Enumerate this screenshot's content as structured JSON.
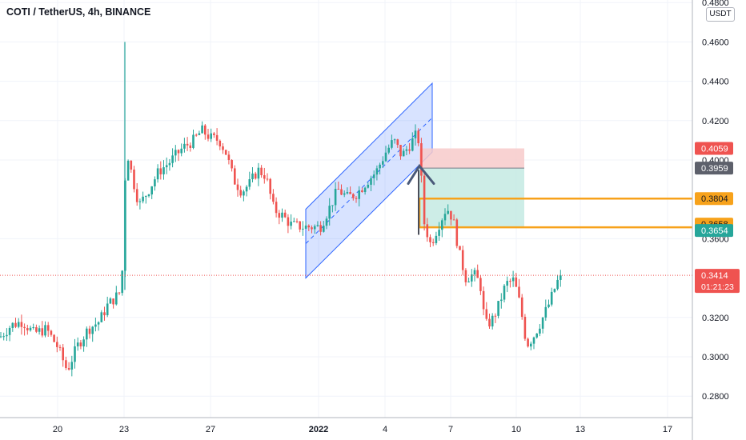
{
  "header": {
    "title": "COTI / TetherUS, 4h, BINANCE",
    "currency": "USDT"
  },
  "colors": {
    "up": "#26a69a",
    "down": "#ef5350",
    "channel": "#2962ff",
    "level": "#f7a21b",
    "stop_zone": "#f7caca",
    "target_zone": "#c8ebe4",
    "grid": "#f0f3fa",
    "axis_text": "#131722"
  },
  "chart_data": {
    "type": "candlestick",
    "symbol": "COTI / TetherUS",
    "interval": "4h",
    "exchange": "BINANCE",
    "ylim": [
      0.27,
      0.48
    ],
    "y_ticks": [
      "0.2800",
      "0.3000",
      "0.3200",
      "0.3600",
      "0.4000",
      "0.4200",
      "0.4400",
      "0.4600",
      "0.4800"
    ],
    "x_ticks": [
      {
        "label": "20",
        "bold": false
      },
      {
        "label": "23",
        "bold": false
      },
      {
        "label": "27",
        "bold": false
      },
      {
        "label": "2022",
        "bold": true
      },
      {
        "label": "4",
        "bold": false
      },
      {
        "label": "7",
        "bold": false
      },
      {
        "label": "10",
        "bold": false
      },
      {
        "label": "13",
        "bold": false
      },
      {
        "label": "17",
        "bold": false
      }
    ],
    "price_path": [
      [
        0,
        0.31
      ],
      [
        14,
        0.316
      ],
      [
        28,
        0.318
      ],
      [
        42,
        0.312
      ],
      [
        58,
        0.314
      ],
      [
        72,
        0.305
      ],
      [
        84,
        0.293
      ],
      [
        96,
        0.305
      ],
      [
        110,
        0.314
      ],
      [
        124,
        0.318
      ],
      [
        134,
        0.326
      ],
      [
        146,
        0.331
      ],
      [
        152,
        0.334
      ],
      [
        156,
        0.39
      ],
      [
        160,
        0.402
      ],
      [
        166,
        0.39
      ],
      [
        174,
        0.377
      ],
      [
        186,
        0.385
      ],
      [
        198,
        0.394
      ],
      [
        212,
        0.399
      ],
      [
        228,
        0.406
      ],
      [
        242,
        0.41
      ],
      [
        252,
        0.415
      ],
      [
        264,
        0.411
      ],
      [
        274,
        0.41
      ],
      [
        282,
        0.404
      ],
      [
        292,
        0.39
      ],
      [
        302,
        0.384
      ],
      [
        312,
        0.388
      ],
      [
        322,
        0.395
      ],
      [
        332,
        0.392
      ],
      [
        342,
        0.375
      ],
      [
        352,
        0.372
      ],
      [
        364,
        0.367
      ],
      [
        378,
        0.366
      ],
      [
        390,
        0.366
      ],
      [
        400,
        0.366
      ],
      [
        412,
        0.376
      ],
      [
        422,
        0.385
      ],
      [
        434,
        0.381
      ],
      [
        446,
        0.383
      ],
      [
        458,
        0.389
      ],
      [
        470,
        0.394
      ],
      [
        482,
        0.404
      ],
      [
        492,
        0.41
      ],
      [
        502,
        0.402
      ],
      [
        514,
        0.409
      ],
      [
        522,
        0.414
      ],
      [
        526,
        0.392
      ],
      [
        530,
        0.368
      ],
      [
        538,
        0.357
      ],
      [
        548,
        0.367
      ],
      [
        558,
        0.376
      ],
      [
        566,
        0.37
      ],
      [
        574,
        0.352
      ],
      [
        582,
        0.34
      ],
      [
        592,
        0.342
      ],
      [
        600,
        0.337
      ],
      [
        606,
        0.316
      ],
      [
        614,
        0.318
      ],
      [
        622,
        0.325
      ],
      [
        632,
        0.337
      ],
      [
        642,
        0.339
      ],
      [
        650,
        0.326
      ],
      [
        658,
        0.306
      ],
      [
        666,
        0.31
      ],
      [
        676,
        0.318
      ],
      [
        686,
        0.327
      ],
      [
        696,
        0.338
      ],
      [
        704,
        0.341
      ]
    ],
    "candle_spacing": 3.7,
    "spikes": [
      {
        "x": 156,
        "high": 0.46,
        "low": 0.334
      }
    ],
    "price_labels": [
      {
        "value": 0.4059,
        "text": "0.4059",
        "bg": "#ef5350"
      },
      {
        "value": 0.3959,
        "text": "0.3959",
        "bg": "#5d606b"
      },
      {
        "value": 0.3804,
        "text": "0.3804",
        "bg": "#f7a21b",
        "fg": "#131722"
      },
      {
        "value": 0.3658,
        "text": "0.3658",
        "bg": "#f7a21b",
        "fg": "#131722"
      },
      {
        "value": 0.3654,
        "text": "0.3654",
        "bg": "#26a69a"
      }
    ],
    "last_price": {
      "value": 0.3414,
      "text": "0.3414",
      "countdown": "01:21:23",
      "bg": "#ef5350"
    },
    "horizontal_levels": [
      0.3804,
      0.3658
    ],
    "position": {
      "entry": 0.3959,
      "stop": 0.4059,
      "target": 0.3654
    },
    "channel": {
      "upper": [
        0.375,
        0.439
      ],
      "lower": [
        0.34,
        0.404
      ]
    }
  }
}
